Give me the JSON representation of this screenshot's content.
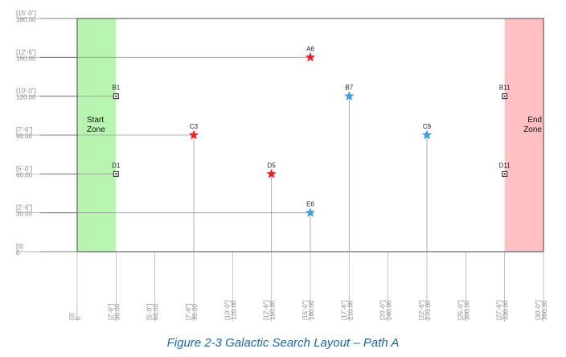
{
  "caption": "Figure 2-3 Galactic Search Layout – Path A",
  "colors": {
    "red": "#ec2027",
    "blue": "#3a9ee0",
    "start_zone": "#b7f5b0",
    "end_zone": "#ffc0c4"
  },
  "chart_data": {
    "type": "scatter",
    "xlim": [
      0,
      360
    ],
    "ylim": [
      0,
      180
    ],
    "grid": false,
    "x_ticks": [
      {
        "value": 0,
        "ft": "[0]",
        "in": "0"
      },
      {
        "value": 30,
        "ft": "[2'-6\"]",
        "in": "30.00"
      },
      {
        "value": 60,
        "ft": "[5'-0\"]",
        "in": "60.00"
      },
      {
        "value": 90,
        "ft": "[7'-6\"]",
        "in": "90.00"
      },
      {
        "value": 120,
        "ft": "[10'-0\"]",
        "in": "120.00"
      },
      {
        "value": 150,
        "ft": "[12'-6\"]",
        "in": "150.00"
      },
      {
        "value": 180,
        "ft": "[15'-0\"]",
        "in": "180.00"
      },
      {
        "value": 210,
        "ft": "[17'-6\"]",
        "in": "210.00"
      },
      {
        "value": 240,
        "ft": "[20'-0\"]",
        "in": "240.00"
      },
      {
        "value": 270,
        "ft": "[22'-6\"]",
        "in": "270.00"
      },
      {
        "value": 300,
        "ft": "[25'-0\"]",
        "in": "300.00"
      },
      {
        "value": 330,
        "ft": "[27'-6\"]",
        "in": "330.00"
      },
      {
        "value": 360,
        "ft": "[30'-0\"]",
        "in": "360.00"
      }
    ],
    "y_ticks": [
      {
        "value": 0,
        "ft": "[0]",
        "in": "0"
      },
      {
        "value": 30,
        "ft": "[2'-6\"]",
        "in": "30.00"
      },
      {
        "value": 60,
        "ft": "[5'-0\"]",
        "in": "60.00"
      },
      {
        "value": 90,
        "ft": "[7'-6\"]",
        "in": "90.00"
      },
      {
        "value": 120,
        "ft": "[10'-0\"]",
        "in": "120.00"
      },
      {
        "value": 150,
        "ft": "[12'-6\"]",
        "in": "150.00"
      },
      {
        "value": 180,
        "ft": "[15'-0\"]",
        "in": "180.00"
      }
    ],
    "zones": [
      {
        "name": "start",
        "label": [
          "Start",
          "Zone"
        ],
        "x0": 0,
        "x1": 30,
        "color": "start_zone",
        "label_align": "start"
      },
      {
        "name": "end",
        "label": [
          "End",
          "Zone"
        ],
        "x0": 330,
        "x1": 360,
        "color": "end_zone",
        "label_align": "end"
      }
    ],
    "points": [
      {
        "label": "A6",
        "x": 180,
        "y": 150,
        "marker": "star",
        "color": "red",
        "leader": "horizontal"
      },
      {
        "label": "C3",
        "x": 90,
        "y": 90,
        "marker": "star",
        "color": "red",
        "leader": "both"
      },
      {
        "label": "D5",
        "x": 150,
        "y": 60,
        "marker": "star",
        "color": "red",
        "leader": "vertical"
      },
      {
        "label": "B7",
        "x": 210,
        "y": 120,
        "marker": "star",
        "color": "blue",
        "leader": "vertical"
      },
      {
        "label": "C9",
        "x": 270,
        "y": 90,
        "marker": "star",
        "color": "blue",
        "leader": "vertical"
      },
      {
        "label": "E6",
        "x": 180,
        "y": 30,
        "marker": "star",
        "color": "blue",
        "leader": "both"
      },
      {
        "label": "B1",
        "x": 30,
        "y": 120,
        "marker": "square",
        "leader": "horizontal"
      },
      {
        "label": "D1",
        "x": 30,
        "y": 60,
        "marker": "square",
        "leader": "horizontal"
      },
      {
        "label": "B11",
        "x": 330,
        "y": 120,
        "marker": "square",
        "leader": "none"
      },
      {
        "label": "D11",
        "x": 330,
        "y": 60,
        "marker": "square",
        "leader": "none"
      }
    ]
  }
}
